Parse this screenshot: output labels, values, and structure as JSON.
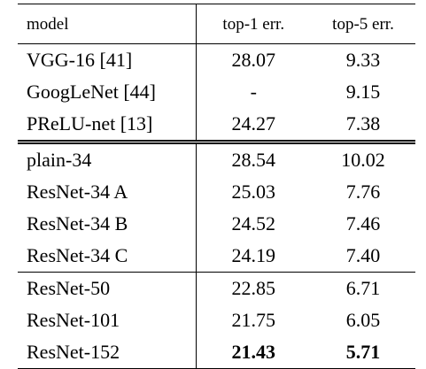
{
  "table": {
    "headers": {
      "model": "model",
      "top1": "top-1 err.",
      "top5": "top-5 err."
    },
    "rows": [
      {
        "model": "VGG-16 [41]",
        "top1": "28.07",
        "top5": "9.33"
      },
      {
        "model": "GoogLeNet [44]",
        "top1": "-",
        "top5": "9.15"
      },
      {
        "model": "PReLU-net [13]",
        "top1": "24.27",
        "top5": "7.38"
      },
      {
        "model": "plain-34",
        "top1": "28.54",
        "top5": "10.02"
      },
      {
        "model": "ResNet-34 A",
        "top1": "25.03",
        "top5": "7.76"
      },
      {
        "model": "ResNet-34 B",
        "top1": "24.52",
        "top5": "7.46"
      },
      {
        "model": "ResNet-34 C",
        "top1": "24.19",
        "top5": "7.40"
      },
      {
        "model": "ResNet-50",
        "top1": "22.85",
        "top5": "6.71"
      },
      {
        "model": "ResNet-101",
        "top1": "21.75",
        "top5": "6.05"
      },
      {
        "model": "ResNet-152",
        "top1": "21.43",
        "top5": "5.71"
      }
    ]
  }
}
